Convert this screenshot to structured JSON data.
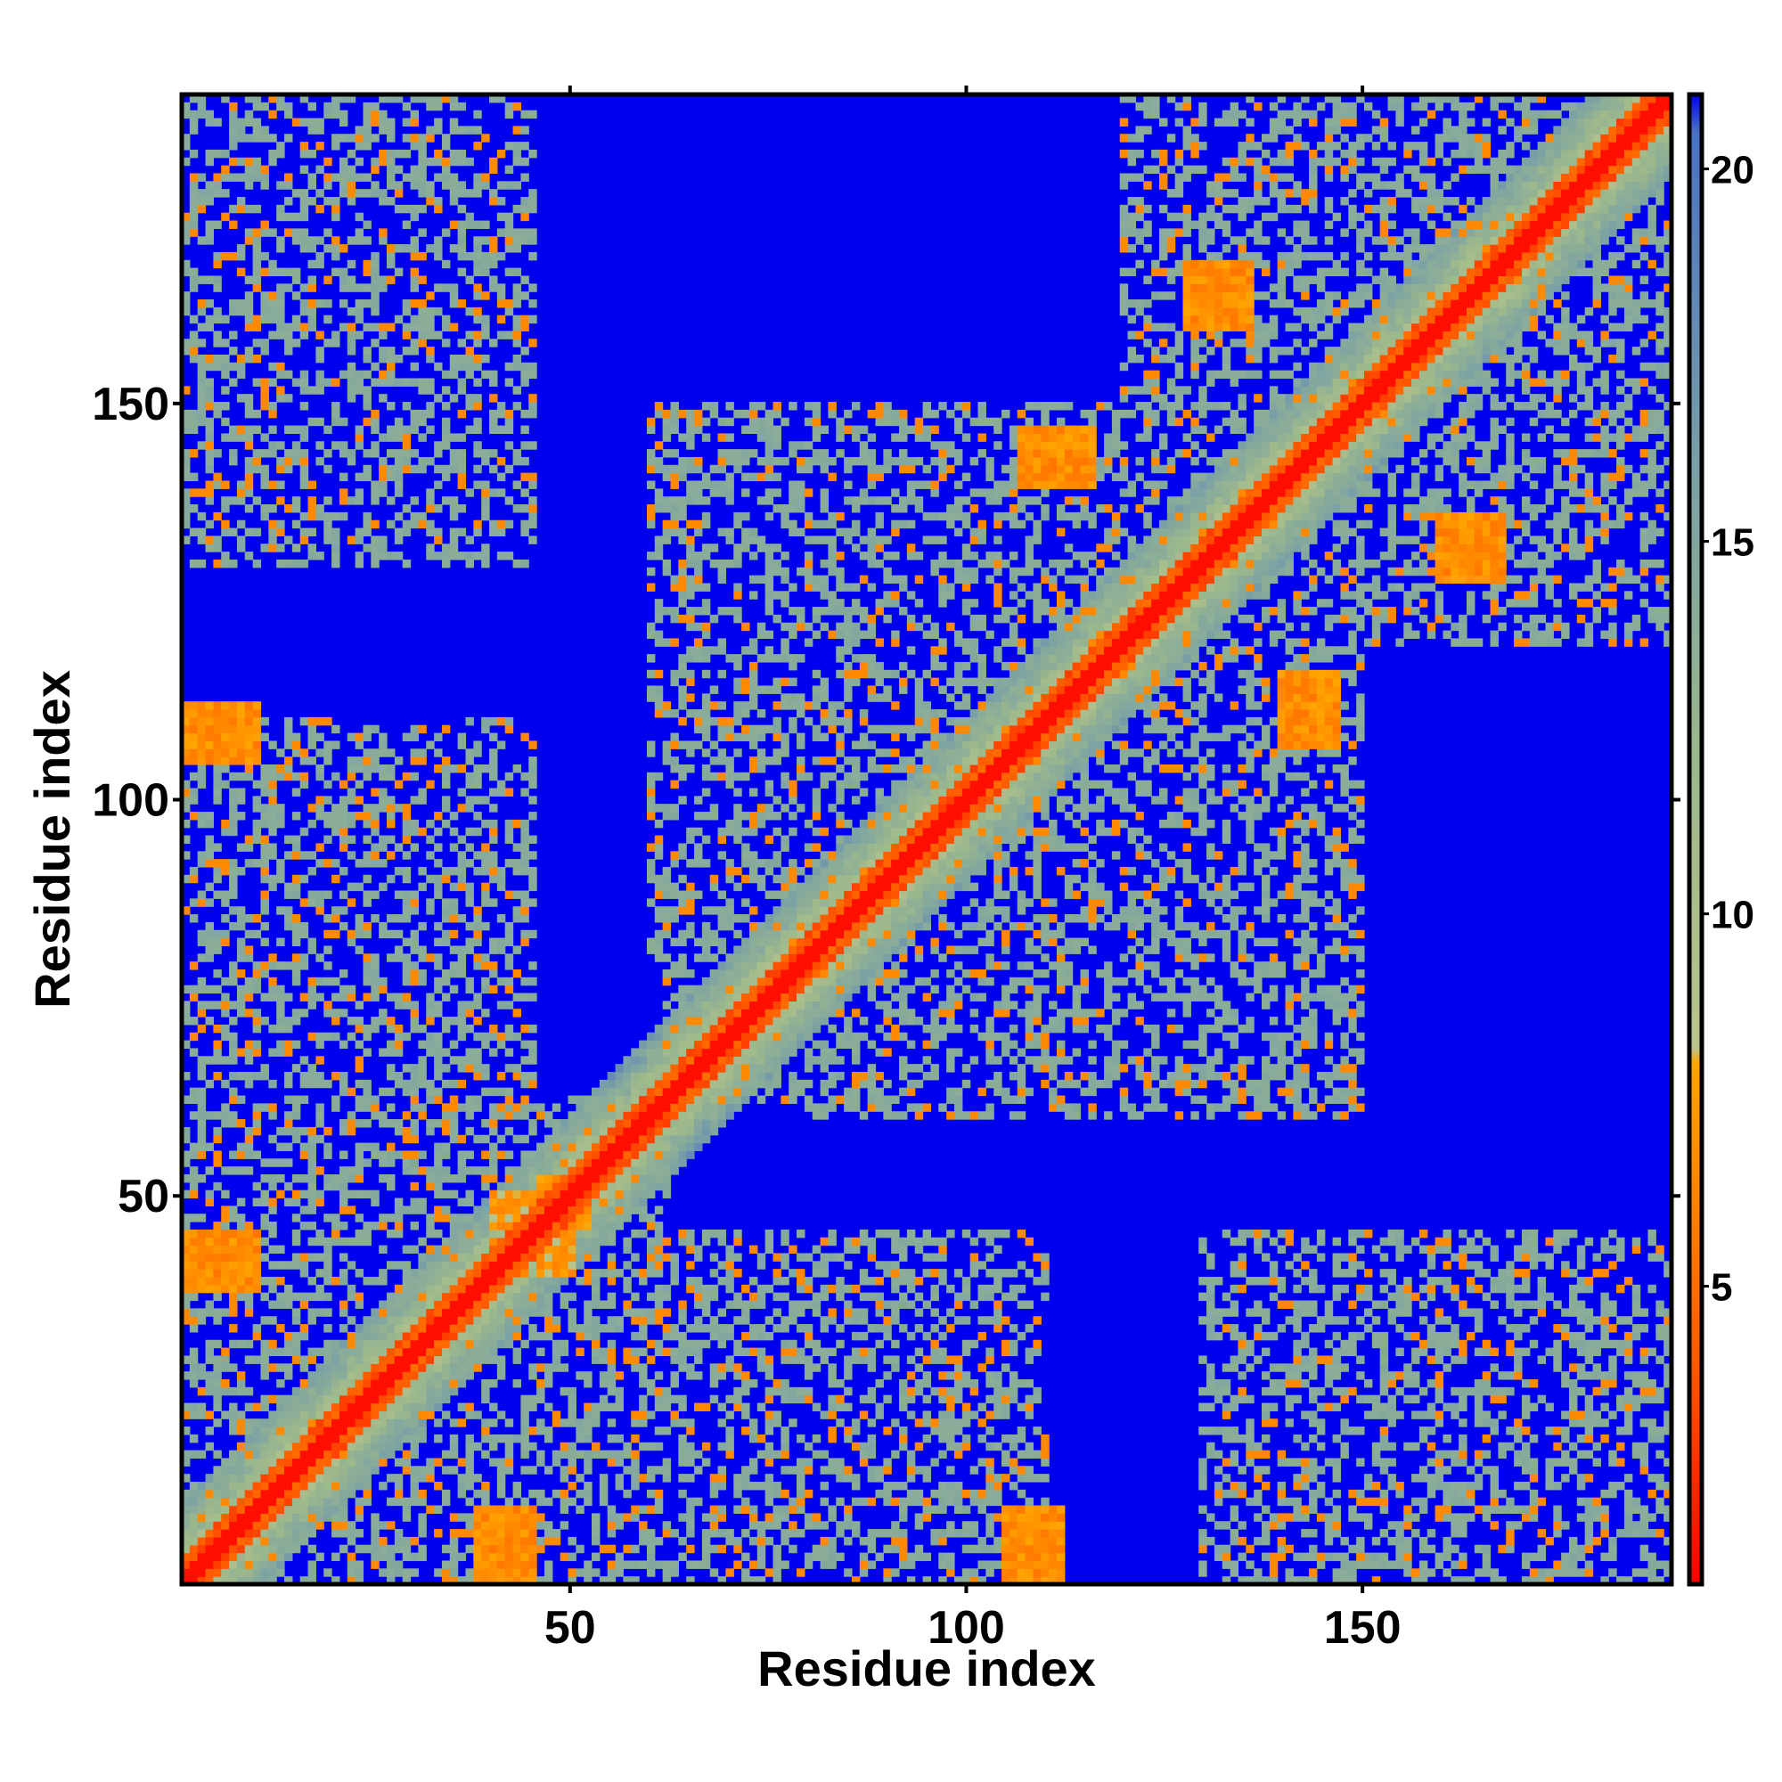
{
  "chart_data": {
    "type": "heatmap",
    "title": "",
    "xlabel": "Residue index",
    "ylabel": "Residue index",
    "xlim": [
      1,
      189
    ],
    "ylim": [
      1,
      189
    ],
    "x_ticks": [
      {
        "value": 50,
        "label": "50"
      },
      {
        "value": 100,
        "label": "100"
      },
      {
        "value": 150,
        "label": "150"
      }
    ],
    "y_ticks": [
      {
        "value": 50,
        "label": "50"
      },
      {
        "value": 100,
        "label": "100"
      },
      {
        "value": 150,
        "label": "150"
      }
    ],
    "colorbar": {
      "range": [
        1,
        21
      ],
      "ticks": [
        {
          "value": 5,
          "label": "5"
        },
        {
          "value": 10,
          "label": "10"
        },
        {
          "value": 15,
          "label": "15"
        },
        {
          "value": 20,
          "label": "20"
        }
      ],
      "stops": [
        {
          "value": 1,
          "color": "#ff0000"
        },
        {
          "value": 4,
          "color": "#ff5a00"
        },
        {
          "value": 8,
          "color": "#ffa500"
        },
        {
          "value": 8.2,
          "color": "#b9c48d"
        },
        {
          "value": 12,
          "color": "#9cb88c"
        },
        {
          "value": 16,
          "color": "#7aa0a6"
        },
        {
          "value": 20.5,
          "color": "#4a70c4"
        },
        {
          "value": 21,
          "color": "#0000ee"
        }
      ]
    },
    "colors": {
      "far": "#0000ee",
      "shell": "#9cb88c",
      "contact": "#ffa500",
      "diagonal": "#ff0000"
    },
    "n_residues": 189,
    "blocks": [
      {
        "x": [
          1,
          62
        ],
        "y": [
          1,
          62
        ],
        "value": 11
      },
      {
        "x": [
          62,
          120
        ],
        "y": [
          62,
          120
        ],
        "value": 11
      },
      {
        "x": [
          120,
          189
        ],
        "y": [
          120,
          189
        ],
        "value": 11
      },
      {
        "x": [
          130,
          189
        ],
        "y": [
          1,
          45
        ],
        "value": 11
      },
      {
        "x": [
          1,
          45
        ],
        "y": [
          130,
          189
        ],
        "value": 11
      },
      {
        "x": [
          40,
          110
        ],
        "y": [
          1,
          45
        ],
        "value": 11
      },
      {
        "x": [
          1,
          45
        ],
        "y": [
          40,
          110
        ],
        "value": 11
      },
      {
        "x": [
          80,
          150
        ],
        "y": [
          60,
          120
        ],
        "value": 11
      },
      {
        "x": [
          60,
          120
        ],
        "y": [
          80,
          150
        ],
        "value": 11
      }
    ],
    "bands": [
      {
        "x": [
          1,
          10
        ],
        "y": [
          38,
          45
        ],
        "value": 5.5
      },
      {
        "x": [
          38,
          45
        ],
        "y": [
          1,
          10
        ],
        "value": 5.5
      },
      {
        "x": [
          1,
          10
        ],
        "y": [
          105,
          112
        ],
        "value": 5.5
      },
      {
        "x": [
          105,
          112
        ],
        "y": [
          1,
          10
        ],
        "value": 5.5
      },
      {
        "x": [
          107,
          116
        ],
        "y": [
          140,
          147
        ],
        "value": 5.5
      },
      {
        "x": [
          140,
          147
        ],
        "y": [
          107,
          116
        ],
        "value": 5.5
      },
      {
        "x": [
          140,
          150
        ],
        "y": [
          107,
          115
        ],
        "value": 5.5
      },
      {
        "x": [
          128,
          136
        ],
        "y": [
          160,
          168
        ],
        "value": 5.5
      },
      {
        "x": [
          160,
          168
        ],
        "y": [
          128,
          136
        ],
        "value": 5.5
      },
      {
        "x": [
          46,
          50
        ],
        "y": [
          40,
          52
        ],
        "value": 6
      },
      {
        "x": [
          40,
          52
        ],
        "y": [
          46,
          50
        ],
        "value": 6
      }
    ]
  }
}
